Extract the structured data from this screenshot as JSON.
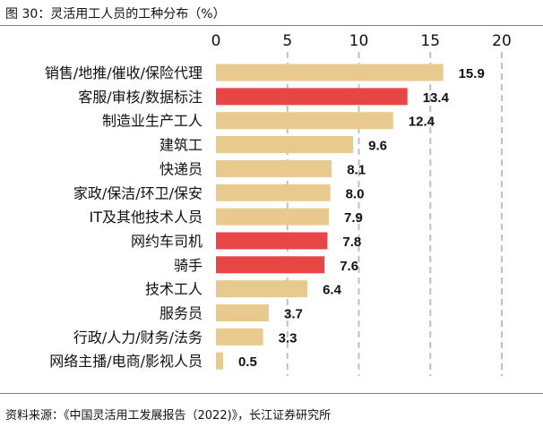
{
  "figure": {
    "title": "图 30：灵活用工人员的工种分布（%）",
    "source": "资料来源：《中国灵活用工发展报告（2022)》，长江证券研究所"
  },
  "colors": {
    "default": "#e8c98e",
    "highlight": "#e84545"
  },
  "chart_data": {
    "type": "bar",
    "orientation": "horizontal",
    "title": "灵活用工人员的工种分布（%）",
    "xlim": [
      0,
      20
    ],
    "xticks": [
      "0",
      "5",
      "10",
      "15",
      "20"
    ],
    "xtick_values": [
      0,
      5,
      10,
      15,
      20
    ],
    "categories": [
      "销售/地推/催收/保险代理",
      "客服/审核/数据标注",
      "制造业生产工人",
      "建筑工",
      "快递员",
      "家政/保洁/环卫/保安",
      "IT及其他技术人员",
      "网约车司机",
      "骑手",
      "技术工人",
      "服务员",
      "行政/人力/财务/法务",
      "网络主播/电商/影视人员"
    ],
    "values": [
      15.9,
      13.4,
      12.4,
      9.6,
      8.1,
      8.0,
      7.9,
      7.8,
      7.6,
      6.4,
      3.7,
      3.3,
      0.5
    ],
    "value_labels": [
      "15.9",
      "13.4",
      "12.4",
      "9.6",
      "8.1",
      "8.0",
      "7.9",
      "7.8",
      "7.6",
      "6.4",
      "3.7",
      "3.3",
      "0.5"
    ],
    "highlighted": [
      false,
      true,
      false,
      false,
      false,
      false,
      false,
      true,
      true,
      false,
      false,
      false,
      false
    ],
    "grid": "vertical dashed"
  }
}
